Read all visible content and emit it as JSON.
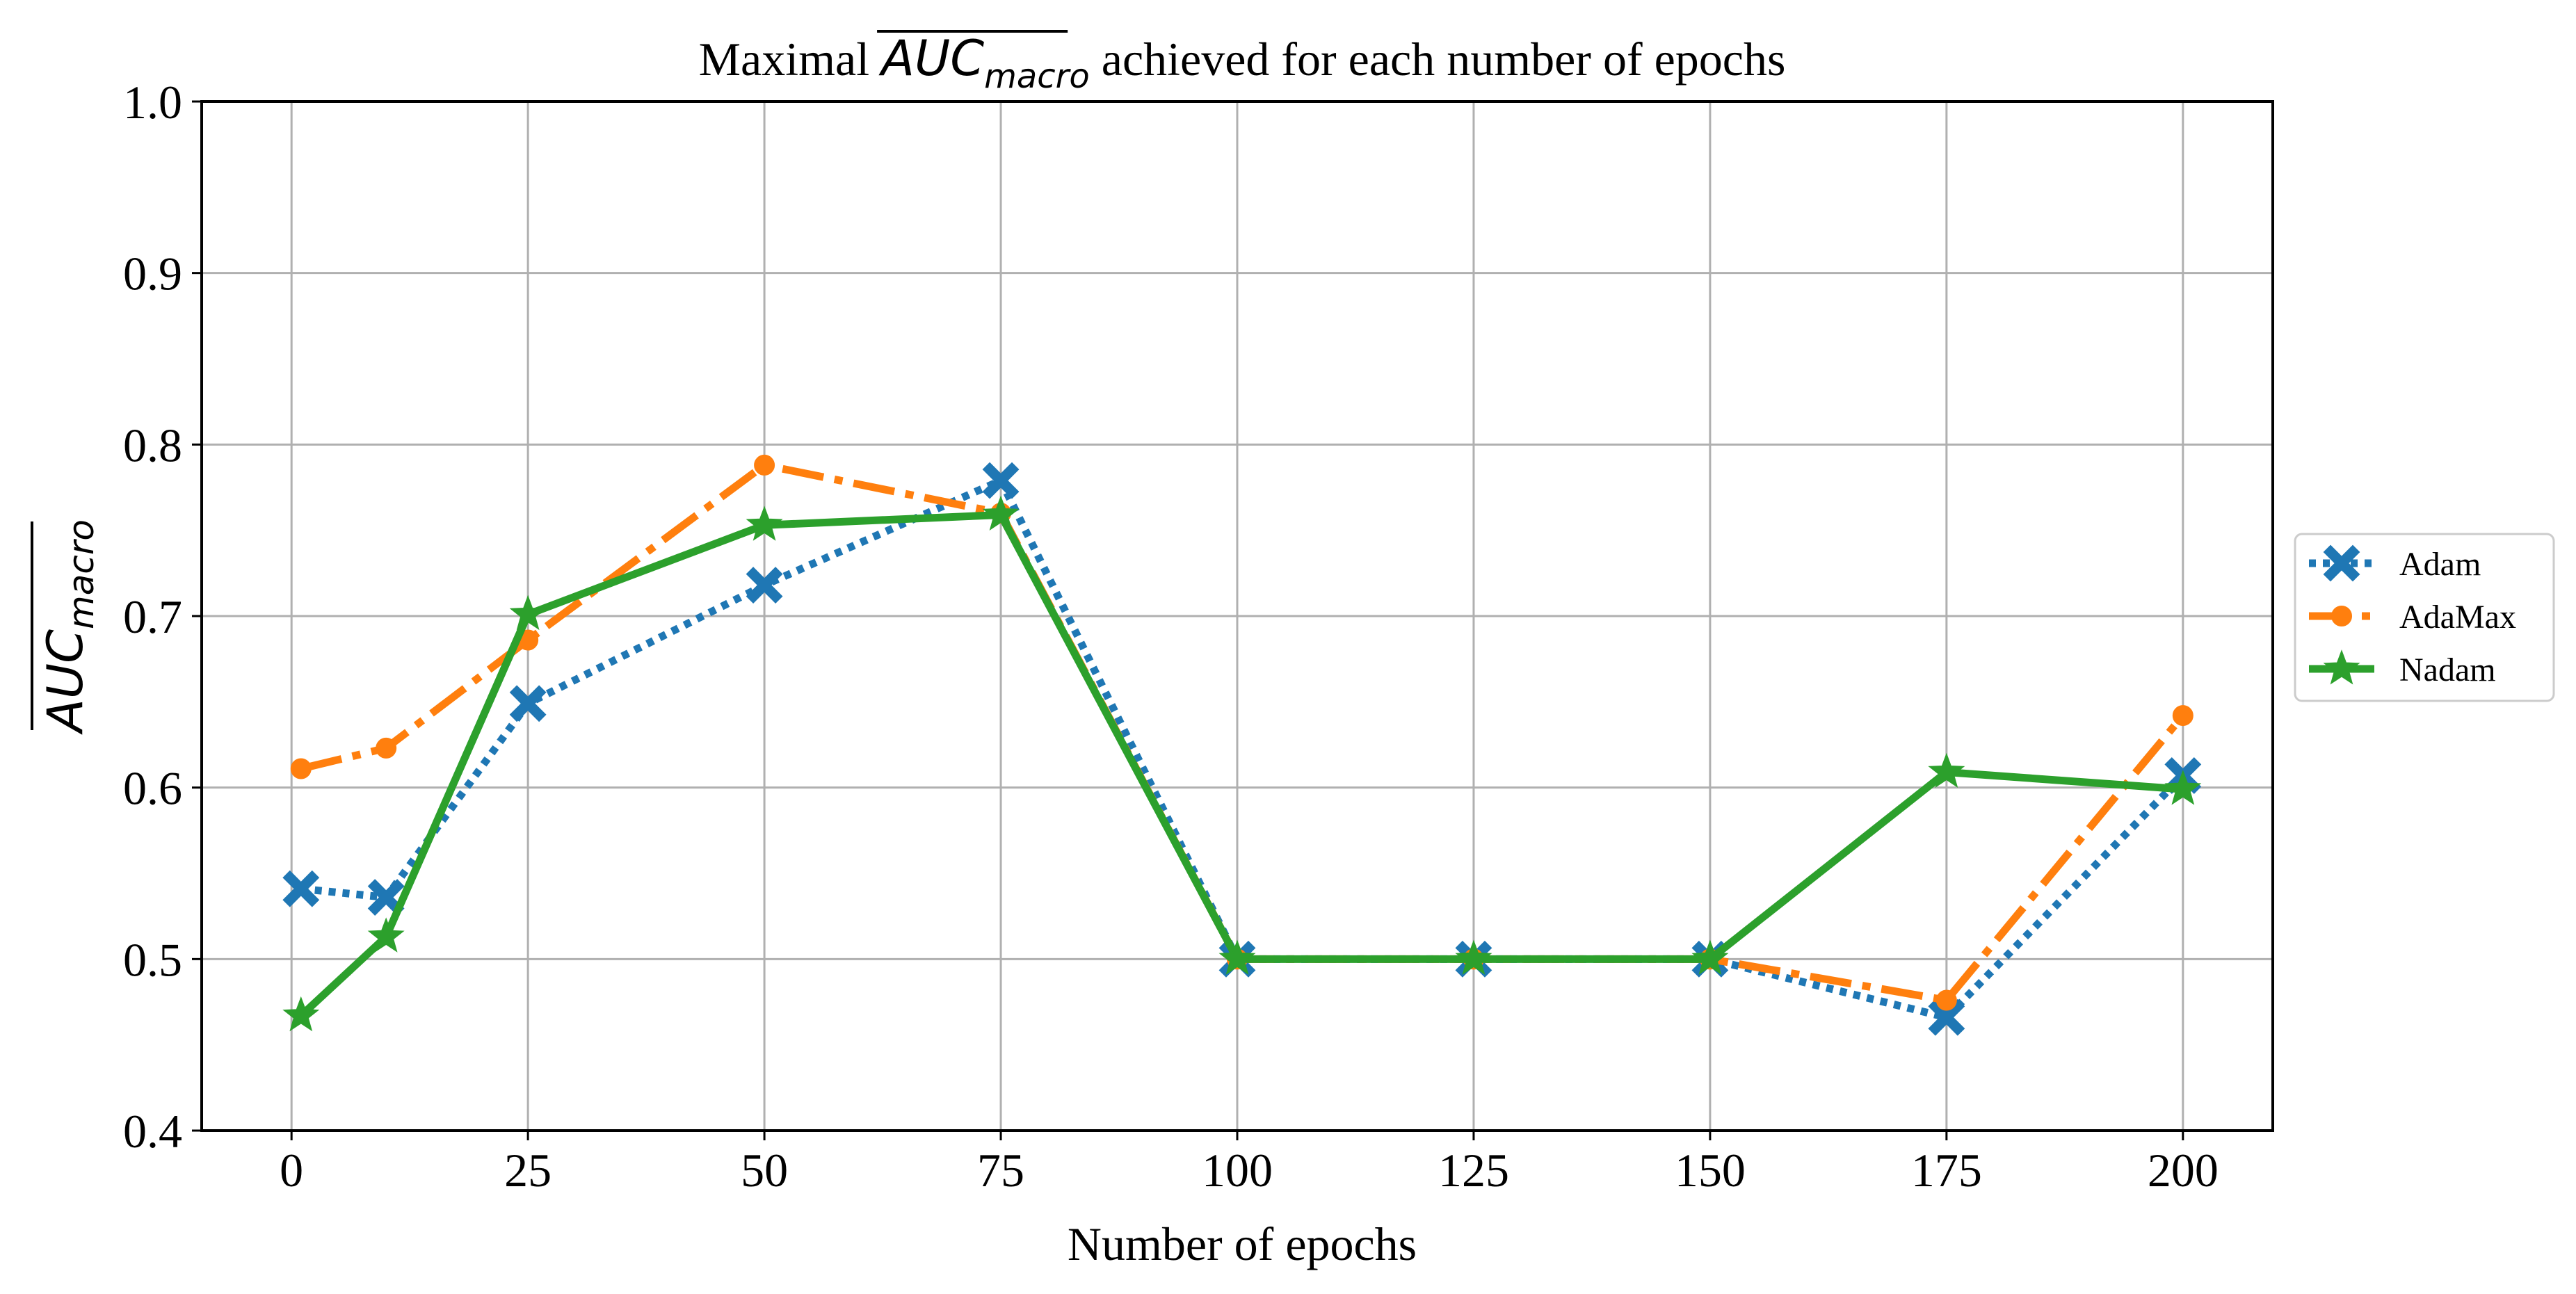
{
  "chart_data": {
    "type": "line",
    "title_prefix": "Maximal ",
    "title_metric": "AUC",
    "title_subscript": "macro",
    "title_suffix": " achieved for each number of epochs",
    "xlabel": "Number of epochs",
    "ylabel_metric": "AUC",
    "ylabel_subscript": "macro",
    "x": [
      1,
      10,
      25,
      50,
      75,
      100,
      125,
      150,
      175,
      200
    ],
    "xlim": [
      -9.5,
      209.5
    ],
    "ylim": [
      0.4,
      1.0
    ],
    "xticks": [
      0,
      25,
      50,
      75,
      100,
      125,
      150,
      175,
      200
    ],
    "xtick_labels": [
      "0",
      "25",
      "50",
      "75",
      "100",
      "125",
      "150",
      "175",
      "200"
    ],
    "yticks": [
      0.4,
      0.5,
      0.6,
      0.7,
      0.8,
      0.9,
      1.0
    ],
    "ytick_labels": [
      "0.4",
      "0.5",
      "0.6",
      "0.7",
      "0.8",
      "0.9",
      "1.0"
    ],
    "grid": true,
    "legend_position": "outside-right",
    "series": [
      {
        "name": "Adam",
        "color": "#1f77b4",
        "linestyle": "dotted",
        "marker": "x-filled",
        "values": [
          0.541,
          0.536,
          0.649,
          0.718,
          0.779,
          0.5,
          0.5,
          0.5,
          0.466,
          0.607
        ]
      },
      {
        "name": "AdaMax",
        "color": "#ff7f0e",
        "linestyle": "dashdot",
        "marker": "circle",
        "values": [
          0.611,
          0.623,
          0.686,
          0.788,
          0.76,
          0.5,
          0.5,
          0.5,
          0.476,
          0.642
        ]
      },
      {
        "name": "Nadam",
        "color": "#2ca02c",
        "linestyle": "solid",
        "marker": "star",
        "values": [
          0.467,
          0.513,
          0.701,
          0.753,
          0.759,
          0.5,
          0.5,
          0.5,
          0.609,
          0.599
        ]
      }
    ]
  }
}
